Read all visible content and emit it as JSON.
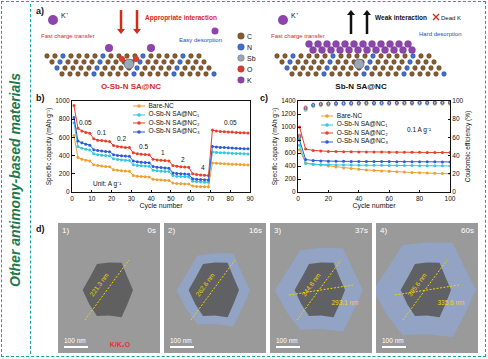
{
  "side_label": "Other antimony-based materials",
  "panel_a": {
    "label": "a)",
    "left": {
      "title": "O-Sb-N SA@NC",
      "ion": "K⁺",
      "transfer": "Fast charge transfer",
      "interaction": "Appropriate interaction",
      "desorption": "Easy desorption"
    },
    "right": {
      "title": "Sb-N SA@NC",
      "ion": "K⁺",
      "transfer": "Fast charge transfer",
      "interaction": "Weak interaction",
      "desorption": "Hard desorption",
      "dead": "Dead K"
    },
    "legend": [
      {
        "label": "C",
        "color": "#8b5a2b"
      },
      {
        "label": "N",
        "color": "#3a6fd8"
      },
      {
        "label": "Sb",
        "color": "#9aa7b8"
      },
      {
        "label": "O",
        "color": "#e03a2a"
      },
      {
        "label": "K",
        "color": "#8e44ad"
      }
    ]
  },
  "chart_data": [
    {
      "panel_label": "b)",
      "type": "line",
      "marker": "circle",
      "x_label": "Cycle number",
      "y_label": "Specific capacity (mAh g⁻¹)",
      "xlim": [
        0,
        90
      ],
      "xticks": [
        0,
        10,
        20,
        30,
        40,
        50,
        60,
        70,
        80,
        90
      ],
      "ylim": [
        0,
        1000
      ],
      "yticks": [
        0,
        200,
        400,
        600,
        800,
        1000
      ],
      "grid": false,
      "legend": "upper center",
      "annotations": [
        {
          "text": "0.05",
          "x": 7,
          "y": 760
        },
        {
          "text": "0.1",
          "x": 15,
          "y": 650
        },
        {
          "text": "0.2",
          "x": 25,
          "y": 590
        },
        {
          "text": "0.5",
          "x": 36,
          "y": 500
        },
        {
          "text": "1",
          "x": 46,
          "y": 430
        },
        {
          "text": "2",
          "x": 56,
          "y": 360
        },
        {
          "text": "4",
          "x": 66,
          "y": 270
        },
        {
          "text": "0.05",
          "x": 80,
          "y": 760
        },
        {
          "text": "Unit: A g⁻¹",
          "x": 18,
          "y": 90
        }
      ],
      "x": [
        1,
        3,
        5,
        7,
        9,
        11,
        13,
        15,
        17,
        19,
        21,
        23,
        25,
        27,
        29,
        31,
        33,
        35,
        37,
        39,
        41,
        43,
        45,
        47,
        49,
        51,
        53,
        55,
        57,
        59,
        61,
        63,
        65,
        67,
        69,
        71,
        73,
        75,
        77,
        79,
        81,
        83,
        85,
        87,
        89
      ],
      "series": [
        {
          "name": "Bare-NC",
          "color": "#f0a030",
          "values": [
            620,
            380,
            360,
            350,
            342,
            300,
            290,
            285,
            280,
            277,
            245,
            238,
            233,
            230,
            228,
            180,
            173,
            170,
            168,
            166,
            140,
            134,
            131,
            129,
            127,
            98,
            93,
            90,
            88,
            87,
            65,
            61,
            59,
            58,
            57,
            320,
            315,
            312,
            310,
            308,
            306,
            304,
            302,
            300,
            298
          ]
        },
        {
          "name": "O-Sb-N SA@NC₁",
          "color": "#33c8e0",
          "values": [
            760,
            500,
            480,
            470,
            462,
            420,
            410,
            405,
            400,
            398,
            365,
            358,
            352,
            348,
            345,
            300,
            292,
            288,
            285,
            282,
            240,
            233,
            229,
            226,
            224,
            180,
            173,
            170,
            168,
            166,
            118,
            113,
            110,
            108,
            106,
            440,
            435,
            432,
            430,
            428,
            426,
            424,
            422,
            420,
            418
          ]
        },
        {
          "name": "O-Sb-N SA@NC₂",
          "color": "#e8402a",
          "values": [
            950,
            700,
            670,
            655,
            645,
            585,
            570,
            565,
            560,
            555,
            510,
            500,
            495,
            490,
            488,
            430,
            420,
            415,
            412,
            410,
            360,
            352,
            348,
            345,
            342,
            290,
            282,
            278,
            275,
            272,
            200,
            192,
            188,
            185,
            182,
            680,
            670,
            665,
            662,
            660,
            658,
            655,
            652,
            650,
            648
          ]
        },
        {
          "name": "O-Sb-N SA@NC₃",
          "color": "#2f5bd6",
          "values": [
            820,
            560,
            540,
            525,
            515,
            465,
            455,
            450,
            446,
            442,
            410,
            402,
            398,
            395,
            392,
            340,
            332,
            328,
            325,
            322,
            280,
            272,
            268,
            265,
            262,
            210,
            203,
            200,
            197,
            195,
            145,
            140,
            137,
            135,
            133,
            500,
            495,
            490,
            488,
            485,
            483,
            480,
            478,
            476,
            474
          ]
        }
      ]
    },
    {
      "panel_label": "c)",
      "type": "line",
      "marker": "circle",
      "x_label": "Cycle number",
      "y_label": "Specific capacity (mAh g⁻¹)",
      "y2_label": "Coulombic efficiency (%)",
      "xlim": [
        0,
        100
      ],
      "xticks": [
        0,
        20,
        40,
        60,
        80,
        100
      ],
      "ylim": [
        0,
        1400
      ],
      "yticks": [
        0,
        200,
        400,
        600,
        800,
        1000,
        1200,
        1400
      ],
      "y2lim": [
        0,
        100
      ],
      "y2ticks": [
        0,
        20,
        40,
        60,
        80,
        100
      ],
      "grid": false,
      "legend": "upper left",
      "annotations": [
        {
          "text": "0.1 A g⁻¹",
          "x": 80,
          "y": 950
        }
      ],
      "x": [
        1,
        5,
        10,
        15,
        20,
        25,
        30,
        35,
        40,
        45,
        50,
        55,
        60,
        65,
        70,
        75,
        80,
        85,
        90,
        95,
        100
      ],
      "series": [
        {
          "name": "Bare-NC",
          "color": "#f0a030",
          "values": [
            650,
            450,
            430,
            415,
            400,
            385,
            370,
            360,
            350,
            340,
            332,
            325,
            318,
            312,
            306,
            300,
            296,
            292,
            288,
            284,
            280
          ],
          "efficiency": [
            60,
            90,
            94,
            95,
            95.5,
            96,
            96,
            96.2,
            96.3,
            96.4,
            96.5,
            96.5,
            96.6,
            96.6,
            96.7,
            96.7,
            96.8,
            96.8,
            96.8,
            96.9,
            96.9
          ]
        },
        {
          "name": "O-Sb-N SA@NC₁",
          "color": "#33c8e0",
          "values": [
            720,
            440,
            425,
            420,
            418,
            416,
            415,
            414,
            413,
            412,
            411,
            410,
            409,
            408,
            407,
            406,
            405,
            404,
            403,
            402,
            401
          ],
          "efficiency": [
            60,
            91,
            95,
            96,
            96.5,
            96.8,
            97,
            97.1,
            97.2,
            97.3,
            97.3,
            97.4,
            97.4,
            97.5,
            97.5,
            97.5,
            97.6,
            97.6,
            97.6,
            97.7,
            97.7
          ]
        },
        {
          "name": "O-Sb-N SA@NC₂",
          "color": "#e8402a",
          "values": [
            1000,
            660,
            640,
            630,
            625,
            622,
            620,
            618,
            617,
            616,
            615,
            614,
            613,
            612,
            611,
            610,
            610,
            609,
            608,
            607,
            606
          ],
          "efficiency": [
            62,
            93,
            96,
            97,
            97.5,
            97.8,
            98,
            98,
            98.2,
            98.3,
            98.3,
            98.4,
            98.4,
            98.5,
            98.5,
            98.5,
            98.6,
            98.6,
            98.6,
            98.7,
            98.7
          ]
        },
        {
          "name": "O-Sb-N SA@NC₃",
          "color": "#2f5bd6",
          "values": [
            800,
            500,
            485,
            478,
            475,
            473,
            472,
            471,
            470,
            470,
            469,
            468,
            468,
            467,
            466,
            466,
            465,
            465,
            464,
            463,
            463
          ],
          "efficiency": [
            61,
            92,
            95.5,
            96.5,
            97,
            97.2,
            97.4,
            97.5,
            97.6,
            97.7,
            97.7,
            97.8,
            97.8,
            97.9,
            97.9,
            97.9,
            98,
            98,
            98,
            98.1,
            98.1
          ]
        }
      ]
    }
  ],
  "panel_d": {
    "label": "d)",
    "images": [
      {
        "index": "1)",
        "time": "0s",
        "scale_bar": "100 nm",
        "measurements": [
          "221.3 nm"
        ],
        "note": "K/K₂O"
      },
      {
        "index": "2)",
        "time": "16s",
        "scale_bar": "100 nm",
        "measurements": [
          "262.6 nm"
        ]
      },
      {
        "index": "3)",
        "time": "37s",
        "scale_bar": "100 nm",
        "measurements": [
          "344.8 nm",
          "293.1 nm"
        ]
      },
      {
        "index": "4)",
        "time": "60s",
        "scale_bar": "100 nm",
        "measurements": [
          "395.6 nm",
          "335.6 nm"
        ]
      }
    ]
  }
}
